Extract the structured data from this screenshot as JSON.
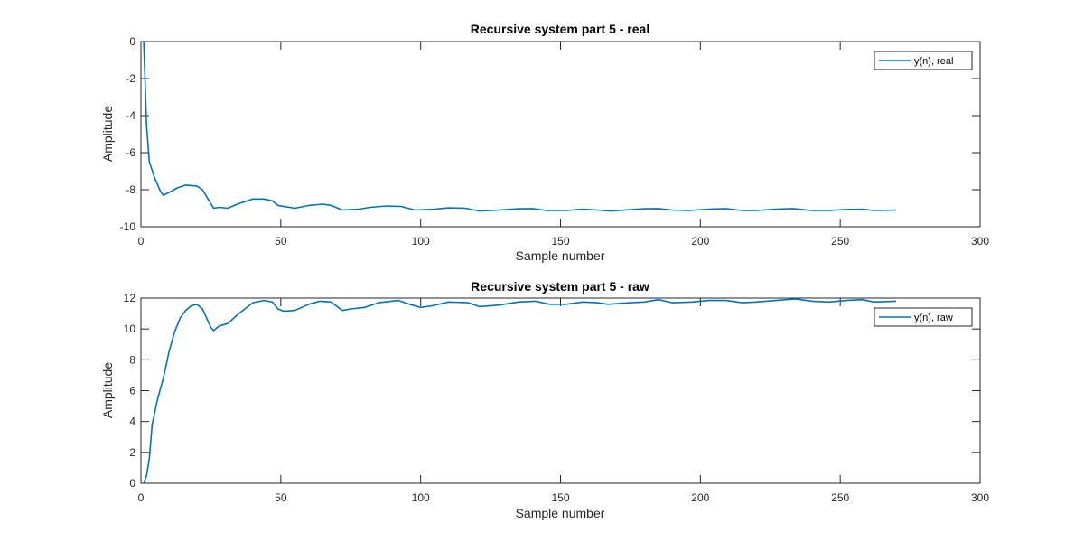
{
  "chart_data": [
    {
      "type": "line",
      "title": "Recursive system part 5 - real",
      "xlabel": "Sample number",
      "ylabel": "Amplitude",
      "xlim": [
        0,
        300
      ],
      "ylim": [
        -10,
        0
      ],
      "xticks": [
        "0",
        "50",
        "100",
        "150",
        "200",
        "250",
        "300"
      ],
      "yticks": [
        "-10",
        "-8",
        "-6",
        "-4",
        "-2",
        "0"
      ],
      "legend": "top-right",
      "grid": false,
      "series": [
        {
          "name": "y(n), real",
          "color": "#0072BD",
          "points": [
            [
              1,
              0
            ],
            [
              2,
              -4.5
            ],
            [
              3,
              -6.5
            ],
            [
              5,
              -7.4
            ],
            [
              7,
              -8.1
            ],
            [
              8,
              -8.3
            ],
            [
              10,
              -8.15
            ],
            [
              13,
              -7.9
            ],
            [
              16,
              -7.75
            ],
            [
              20,
              -7.8
            ],
            [
              22,
              -8.0
            ],
            [
              24,
              -8.5
            ],
            [
              26,
              -9.0
            ],
            [
              28,
              -8.95
            ],
            [
              31,
              -9.0
            ],
            [
              35,
              -8.75
            ],
            [
              40,
              -8.5
            ],
            [
              44,
              -8.5
            ],
            [
              47,
              -8.6
            ],
            [
              49,
              -8.85
            ],
            [
              55,
              -9.0
            ],
            [
              60,
              -8.85
            ],
            [
              65,
              -8.78
            ],
            [
              68,
              -8.85
            ],
            [
              72,
              -9.1
            ],
            [
              78,
              -9.05
            ],
            [
              82,
              -8.95
            ],
            [
              88,
              -8.88
            ],
            [
              93,
              -8.9
            ],
            [
              98,
              -9.1
            ],
            [
              105,
              -9.05
            ],
            [
              110,
              -8.98
            ],
            [
              116,
              -9.0
            ],
            [
              121,
              -9.15
            ],
            [
              128,
              -9.1
            ],
            [
              135,
              -9.03
            ],
            [
              140,
              -9.02
            ],
            [
              145,
              -9.12
            ],
            [
              152,
              -9.12
            ],
            [
              158,
              -9.05
            ],
            [
              163,
              -9.1
            ],
            [
              168,
              -9.15
            ],
            [
              175,
              -9.08
            ],
            [
              180,
              -9.03
            ],
            [
              185,
              -9.02
            ],
            [
              190,
              -9.1
            ],
            [
              196,
              -9.12
            ],
            [
              203,
              -9.05
            ],
            [
              209,
              -9.02
            ],
            [
              215,
              -9.12
            ],
            [
              220,
              -9.12
            ],
            [
              227,
              -9.05
            ],
            [
              233,
              -9.02
            ],
            [
              240,
              -9.12
            ],
            [
              246,
              -9.12
            ],
            [
              252,
              -9.07
            ],
            [
              258,
              -9.05
            ],
            [
              262,
              -9.12
            ],
            [
              270,
              -9.1
            ]
          ]
        }
      ]
    },
    {
      "type": "line",
      "title": "Recursive system part 5 - raw",
      "xlabel": "Sample number",
      "ylabel": "Amplitude",
      "xlim": [
        0,
        300
      ],
      "ylim": [
        0,
        12
      ],
      "xticks": [
        "0",
        "50",
        "100",
        "150",
        "200",
        "250",
        "300"
      ],
      "yticks": [
        "0",
        "2",
        "4",
        "6",
        "8",
        "10",
        "12"
      ],
      "legend": "top-right",
      "grid": false,
      "series": [
        {
          "name": "y(n), raw",
          "color": "#0072BD",
          "points": [
            [
              1,
              0
            ],
            [
              2,
              0.5
            ],
            [
              3,
              1.6
            ],
            [
              4,
              3.8
            ],
            [
              6,
              5.5
            ],
            [
              8,
              6.8
            ],
            [
              10,
              8.5
            ],
            [
              12,
              9.8
            ],
            [
              14,
              10.7
            ],
            [
              16,
              11.2
            ],
            [
              18,
              11.5
            ],
            [
              20,
              11.6
            ],
            [
              22,
              11.3
            ],
            [
              24,
              10.5
            ],
            [
              25,
              10.1
            ],
            [
              26,
              9.9
            ],
            [
              28,
              10.2
            ],
            [
              31,
              10.35
            ],
            [
              35,
              11.0
            ],
            [
              40,
              11.7
            ],
            [
              44,
              11.85
            ],
            [
              47,
              11.75
            ],
            [
              49,
              11.3
            ],
            [
              51,
              11.15
            ],
            [
              55,
              11.2
            ],
            [
              60,
              11.6
            ],
            [
              64,
              11.8
            ],
            [
              68,
              11.75
            ],
            [
              72,
              11.2
            ],
            [
              75,
              11.3
            ],
            [
              80,
              11.4
            ],
            [
              85,
              11.7
            ],
            [
              92,
              11.85
            ],
            [
              96,
              11.6
            ],
            [
              100,
              11.4
            ],
            [
              104,
              11.5
            ],
            [
              110,
              11.75
            ],
            [
              117,
              11.7
            ],
            [
              121,
              11.45
            ],
            [
              128,
              11.55
            ],
            [
              135,
              11.75
            ],
            [
              141,
              11.8
            ],
            [
              146,
              11.6
            ],
            [
              152,
              11.6
            ],
            [
              158,
              11.75
            ],
            [
              163,
              11.7
            ],
            [
              167,
              11.6
            ],
            [
              175,
              11.7
            ],
            [
              180,
              11.75
            ],
            [
              185,
              11.9
            ],
            [
              190,
              11.7
            ],
            [
              197,
              11.75
            ],
            [
              203,
              11.85
            ],
            [
              209,
              11.85
            ],
            [
              215,
              11.7
            ],
            [
              220,
              11.75
            ],
            [
              227,
              11.85
            ],
            [
              234,
              11.95
            ],
            [
              240,
              11.8
            ],
            [
              246,
              11.75
            ],
            [
              252,
              11.85
            ],
            [
              258,
              11.9
            ],
            [
              262,
              11.75
            ],
            [
              270,
              11.8
            ]
          ]
        }
      ]
    }
  ]
}
